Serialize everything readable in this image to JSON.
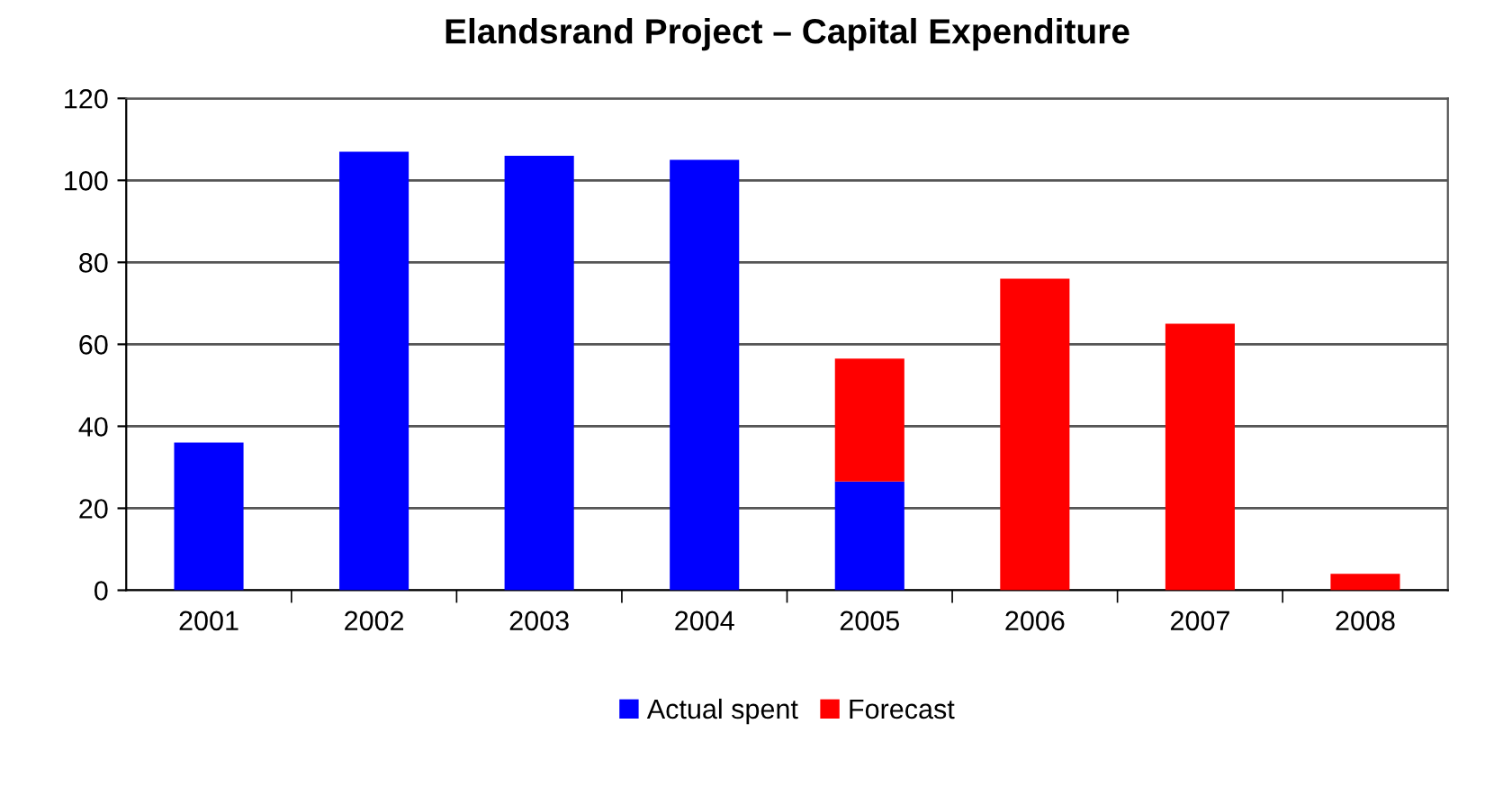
{
  "chart_data": {
    "type": "bar",
    "title": "Elandsrand Project – Capital Expenditure",
    "categories": [
      "2001",
      "2002",
      "2003",
      "2004",
      "2005",
      "2006",
      "2007",
      "2008"
    ],
    "stacked": true,
    "series": [
      {
        "name": "Actual spent",
        "color": "#0000ff",
        "values": [
          36,
          107,
          106,
          105,
          26.5,
          null,
          null,
          null
        ]
      },
      {
        "name": "Forecast",
        "color": "#ff0000",
        "values": [
          null,
          null,
          null,
          null,
          30,
          76,
          65,
          4
        ]
      }
    ],
    "ylim": [
      0,
      120
    ],
    "yticks": [
      0,
      20,
      40,
      60,
      80,
      100,
      120
    ],
    "grid": "y",
    "legend": "bottom"
  }
}
